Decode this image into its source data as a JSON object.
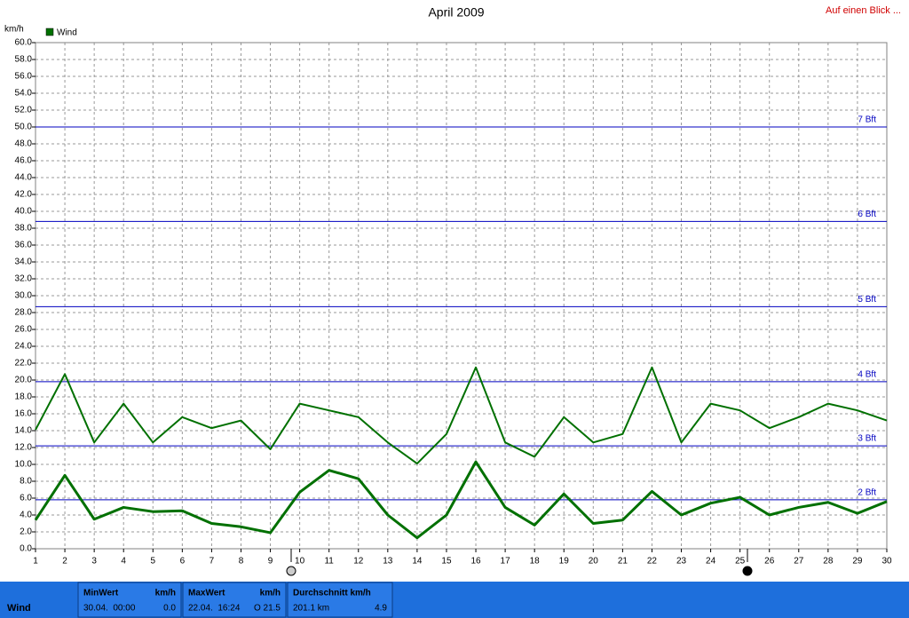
{
  "chart_data": {
    "type": "line",
    "title": "April 2009",
    "y_label": "km/h",
    "x": [
      1,
      2,
      3,
      4,
      5,
      6,
      7,
      8,
      9,
      10,
      11,
      12,
      13,
      14,
      15,
      16,
      17,
      18,
      19,
      20,
      21,
      22,
      23,
      24,
      25,
      26,
      27,
      28,
      29,
      30
    ],
    "xlim": [
      1,
      30
    ],
    "xticks": [
      1,
      2,
      3,
      4,
      5,
      6,
      7,
      8,
      9,
      10,
      11,
      12,
      13,
      14,
      15,
      16,
      17,
      18,
      19,
      20,
      21,
      22,
      23,
      24,
      25,
      26,
      27,
      28,
      29,
      30
    ],
    "ylim": [
      0,
      60
    ],
    "yticks": [
      {
        "value": 0,
        "label": "0.0"
      },
      {
        "value": 2,
        "label": "2.0"
      },
      {
        "value": 4,
        "label": "4.0"
      },
      {
        "value": 6,
        "label": "6.0"
      },
      {
        "value": 8,
        "label": "8.0"
      },
      {
        "value": 10,
        "label": "10.0"
      },
      {
        "value": 12,
        "label": "12.0"
      },
      {
        "value": 14,
        "label": "14.0"
      },
      {
        "value": 16,
        "label": "16.0"
      },
      {
        "value": 18,
        "label": "18.0"
      },
      {
        "value": 20,
        "label": "20.0"
      },
      {
        "value": 22,
        "label": "22.0"
      },
      {
        "value": 24,
        "label": "24.0"
      },
      {
        "value": 26,
        "label": "26.0"
      },
      {
        "value": 28,
        "label": "28.0"
      },
      {
        "value": 30,
        "label": "30.0"
      },
      {
        "value": 32,
        "label": "32.0"
      },
      {
        "value": 34,
        "label": "34.0"
      },
      {
        "value": 36,
        "label": "36.0"
      },
      {
        "value": 38,
        "label": "38.0"
      },
      {
        "value": 40,
        "label": "40.0"
      },
      {
        "value": 42,
        "label": "42.0"
      },
      {
        "value": 44,
        "label": "44.0"
      },
      {
        "value": 46,
        "label": "46.0"
      },
      {
        "value": 48,
        "label": "48.0"
      },
      {
        "value": 50,
        "label": "50.0"
      },
      {
        "value": 52,
        "label": "52.0"
      },
      {
        "value": 54,
        "label": "54.0"
      },
      {
        "value": 56,
        "label": "56.0"
      },
      {
        "value": 58,
        "label": "58.0"
      },
      {
        "value": 60,
        "label": "60.0"
      }
    ],
    "grid": true,
    "legend": "top-left",
    "series": [
      {
        "name": "Wind",
        "color": "#007000",
        "line_width": 3,
        "values": [
          3.4,
          8.7,
          3.5,
          4.9,
          4.4,
          4.5,
          3.0,
          2.6,
          1.9,
          6.7,
          9.3,
          8.3,
          4.0,
          1.3,
          4.0,
          10.3,
          4.9,
          2.8,
          6.5,
          3.0,
          3.4,
          6.8,
          4.0,
          5.4,
          6.1,
          4.0,
          4.9,
          5.5,
          4.2,
          5.6
        ]
      },
      {
        "color": "#007000",
        "line_width": 2,
        "values": [
          14.1,
          20.7,
          12.6,
          17.2,
          12.6,
          15.6,
          14.3,
          15.2,
          11.8,
          17.2,
          16.4,
          15.6,
          12.6,
          10.1,
          13.6,
          21.5,
          12.6,
          10.9,
          15.6,
          12.6,
          13.6,
          21.5,
          12.6,
          17.2,
          16.4,
          14.3,
          15.6,
          17.2,
          16.4,
          15.2
        ]
      }
    ],
    "reference_color": "#0000c0",
    "reference_lines": [
      {
        "value": 5.8,
        "label": "2 Bft"
      },
      {
        "value": 12.2,
        "label": "3 Bft"
      },
      {
        "value": 19.8,
        "label": "4 Bft"
      },
      {
        "value": 28.7,
        "label": "5 Bft"
      },
      {
        "value": 38.8,
        "label": "6 Bft"
      },
      {
        "value": 50.0,
        "label": "7 Bft"
      }
    ]
  },
  "header": {
    "link": "Auf einen Blick ..."
  },
  "summary": {
    "label": "Wind",
    "boxes": [
      {
        "title": "MinWert",
        "unit": "km/h",
        "time": "30.04.  00:00",
        "value": "0.0"
      },
      {
        "title": "MaxWert",
        "unit": "km/h",
        "time": "22.04.  16:24",
        "value": "O 21.5"
      },
      {
        "title": "Durchschnitt km/h",
        "time": "201.1 km",
        "value": "4.9"
      }
    ]
  }
}
